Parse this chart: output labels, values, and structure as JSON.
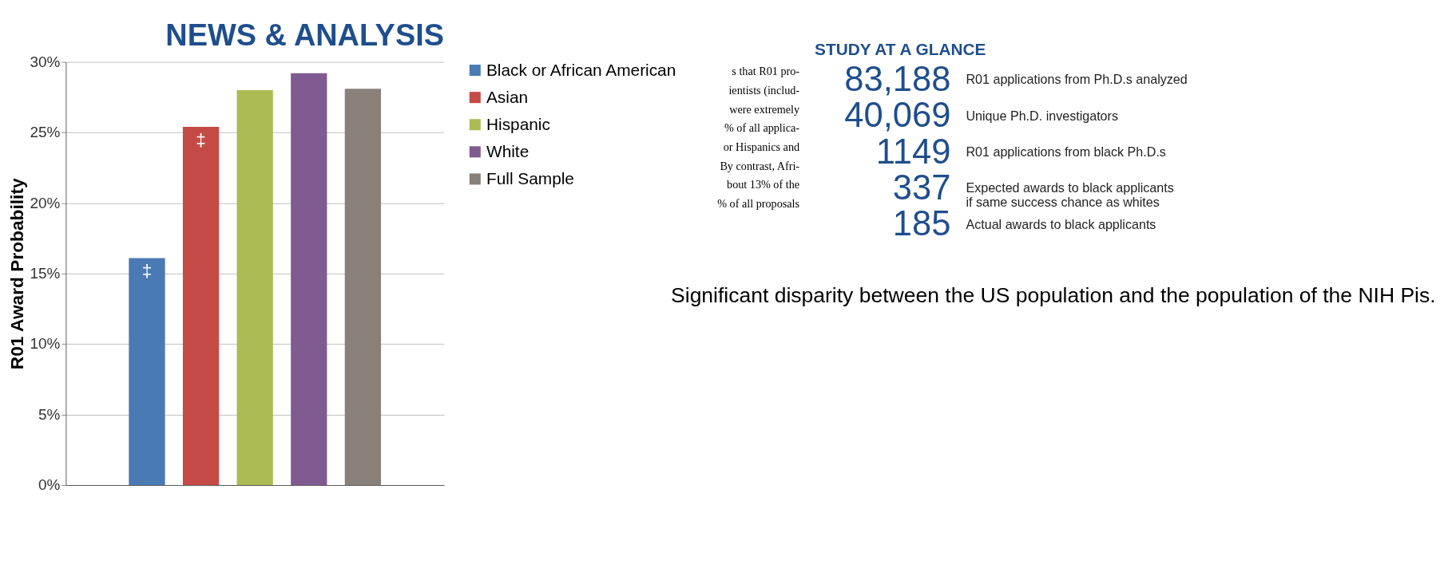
{
  "chart_data": [
    {
      "type": "bar",
      "title": "NEWS & ANALYSIS",
      "ylabel": "R01 Award Probability",
      "categories": [
        null
      ],
      "series": [
        {
          "name": "Black or African American",
          "color": "#4a7ab3",
          "values": [
            16.1
          ],
          "value_labels": [
            "‡"
          ]
        },
        {
          "name": "Asian",
          "color": "#c44a45",
          "values": [
            25.4
          ],
          "value_labels": [
            "‡"
          ]
        },
        {
          "name": "Hispanic",
          "color": "#adbb55",
          "values": [
            28.0
          ],
          "value_labels": [
            null
          ]
        },
        {
          "name": "White",
          "color": "#7f5b92",
          "values": [
            29.2
          ],
          "value_labels": [
            null
          ]
        },
        {
          "name": "Full Sample",
          "color": "#8a807a",
          "values": [
            28.1
          ],
          "value_labels": [
            null
          ]
        }
      ],
      "ylim": [
        0,
        30
      ],
      "yticks": [
        {
          "value": 0,
          "label": "0%"
        },
        {
          "value": 5,
          "label": "5%"
        },
        {
          "value": 10,
          "label": "10%"
        },
        {
          "value": 15,
          "label": "15%"
        },
        {
          "value": 20,
          "label": "20%"
        },
        {
          "value": 25,
          "label": "25%"
        },
        {
          "value": 30,
          "label": "30%"
        }
      ],
      "grid": "y",
      "legend": "right",
      "annotations": [
        "s that R01 pro-",
        "ientists (includ-",
        "were extremely",
        "% of all applica-",
        "or Hispanics and",
        "By contrast, Afri-",
        "bout 13% of the",
        "% of all proposals",
        "Significant disparity between the US population and the population of the NIH Pis."
      ]
    },
    {
      "type": "other",
      "title": "STUDY AT A GLANCE",
      "annotations": [
        "83,188",
        "R01 applications from Ph.D.s analyzed",
        "40,069",
        "Unique Ph.D. investigators",
        "1149",
        "R01 applications from black Ph.D.s",
        "337",
        "Expected awards to black applicants\nif same success chance as whites",
        "185",
        "Actual awards to black applicants"
      ]
    }
  ]
}
